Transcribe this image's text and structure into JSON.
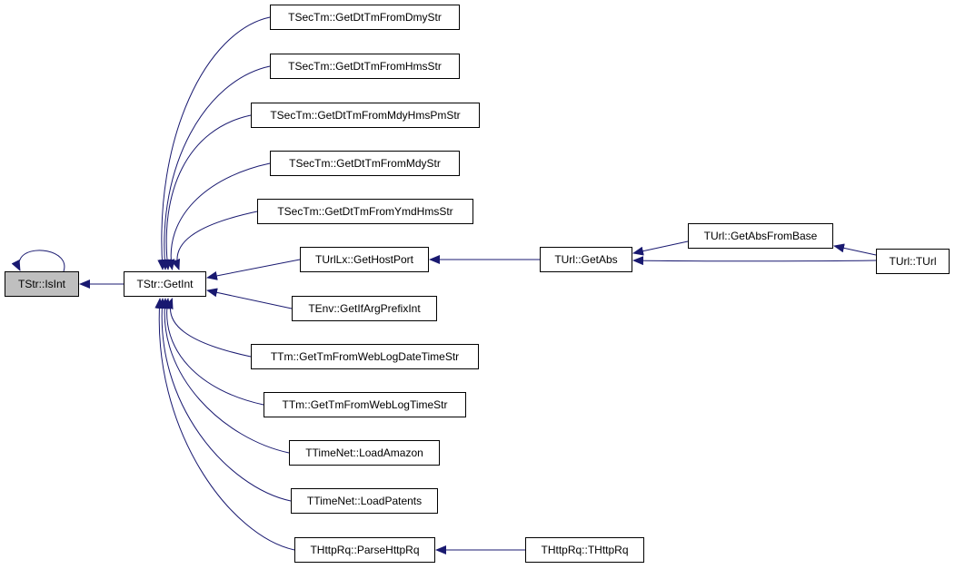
{
  "graph": {
    "type": "caller-graph",
    "edge_color": "#191970",
    "highlight_color": "#bfbfbf",
    "nodes": [
      {
        "id": "isint",
        "label": "TStr::IsInt",
        "highlighted": true
      },
      {
        "id": "getint",
        "label": "TStr::GetInt"
      },
      {
        "id": "n1",
        "label": "TSecTm::GetDtTmFromDmyStr"
      },
      {
        "id": "n2",
        "label": "TSecTm::GetDtTmFromHmsStr"
      },
      {
        "id": "n3",
        "label": "TSecTm::GetDtTmFromMdyHmsPmStr"
      },
      {
        "id": "n4",
        "label": "TSecTm::GetDtTmFromMdyStr"
      },
      {
        "id": "n5",
        "label": "TSecTm::GetDtTmFromYmdHmsStr"
      },
      {
        "id": "n6",
        "label": "TUrlLx::GetHostPort"
      },
      {
        "id": "n7",
        "label": "TEnv::GetIfArgPrefixInt"
      },
      {
        "id": "n8",
        "label": "TTm::GetTmFromWebLogDateTimeStr"
      },
      {
        "id": "n9",
        "label": "TTm::GetTmFromWebLogTimeStr"
      },
      {
        "id": "n10",
        "label": "TTimeNet::LoadAmazon"
      },
      {
        "id": "n11",
        "label": "TTimeNet::LoadPatents"
      },
      {
        "id": "n12",
        "label": "THttpRq::ParseHttpRq"
      },
      {
        "id": "getabs",
        "label": "TUrl::GetAbs"
      },
      {
        "id": "getabsfrombase",
        "label": "TUrl::GetAbsFromBase"
      },
      {
        "id": "turl",
        "label": "TUrl::TUrl"
      },
      {
        "id": "thttprq",
        "label": "THttpRq::THttpRq"
      }
    ],
    "edges": [
      [
        "isint",
        "isint"
      ],
      [
        "getint",
        "isint"
      ],
      [
        "n1",
        "getint"
      ],
      [
        "n2",
        "getint"
      ],
      [
        "n3",
        "getint"
      ],
      [
        "n4",
        "getint"
      ],
      [
        "n5",
        "getint"
      ],
      [
        "n6",
        "getint"
      ],
      [
        "n7",
        "getint"
      ],
      [
        "n8",
        "getint"
      ],
      [
        "n9",
        "getint"
      ],
      [
        "n10",
        "getint"
      ],
      [
        "n11",
        "getint"
      ],
      [
        "n12",
        "getint"
      ],
      [
        "getabs",
        "n6"
      ],
      [
        "getabsfrombase",
        "getabs"
      ],
      [
        "turl",
        "getabs"
      ],
      [
        "turl",
        "getabsfrombase"
      ],
      [
        "thttprq",
        "n12"
      ]
    ]
  }
}
